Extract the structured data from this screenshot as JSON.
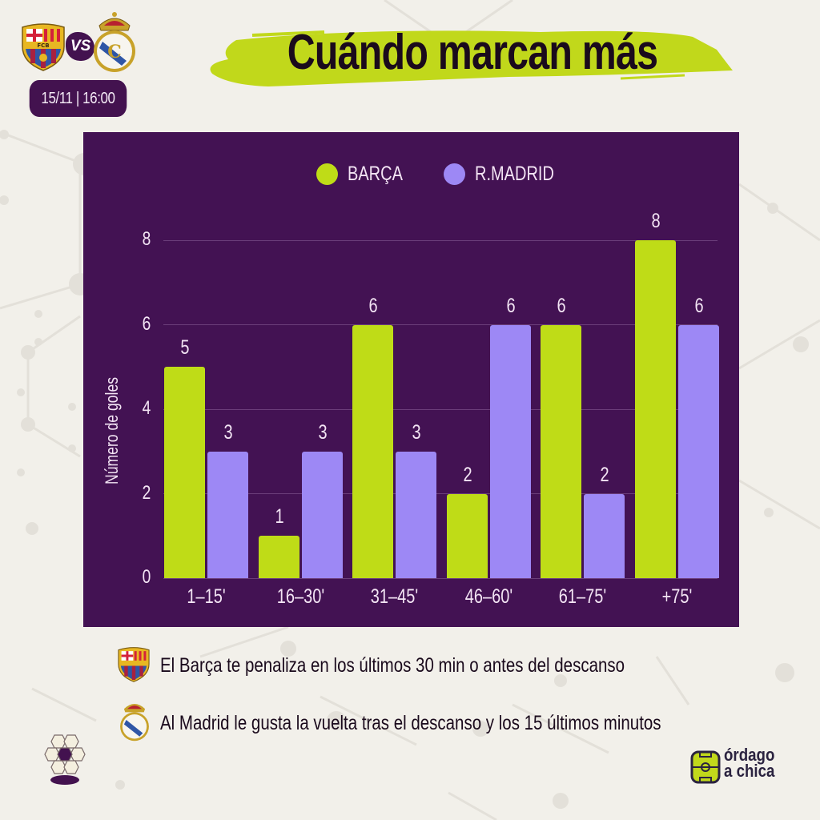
{
  "header": {
    "home_team": "FC Barcelona",
    "vs_label": "VS",
    "away_team": "Real Madrid",
    "match_datetime": "15/11 | 16:00",
    "title": "Cuándo marcan más"
  },
  "colors": {
    "background": "#f2f0ea",
    "panel": "#431253",
    "barca": "#bfdc17",
    "madrid": "#9d88f5",
    "title_brush": "#c1d81b",
    "text_light": "#f3e4f4",
    "text_dark": "#1a0a1c"
  },
  "chart_data": {
    "type": "bar",
    "title": "Cuándo marcan más",
    "xlabel": "",
    "ylabel": "Número de goles",
    "ylim": [
      0,
      8
    ],
    "yticks": [
      0,
      2,
      4,
      6,
      8
    ],
    "grid": true,
    "legend_position": "top",
    "categories": [
      "1–15'",
      "16–30'",
      "31–45'",
      "46–60'",
      "61–75'",
      "+75'"
    ],
    "series": [
      {
        "name": "BARÇA",
        "color": "#bfdc17",
        "values": [
          5,
          1,
          6,
          2,
          6,
          8
        ]
      },
      {
        "name": "R.MADRID",
        "color": "#9d88f5",
        "values": [
          3,
          3,
          3,
          6,
          2,
          6
        ]
      }
    ]
  },
  "legend": {
    "barca_label": "BARÇA",
    "madrid_label": "R.MADRID"
  },
  "notes": [
    {
      "team": "FC Barcelona",
      "text": "El Barça te penaliza en los últimos 30 min o antes del descanso"
    },
    {
      "team": "Real Madrid",
      "text": "Al Madrid le gusta la vuelta tras el descanso y los 15 últimos minutos"
    }
  ],
  "brand": {
    "line1": "órdago",
    "line2": "a chica"
  }
}
